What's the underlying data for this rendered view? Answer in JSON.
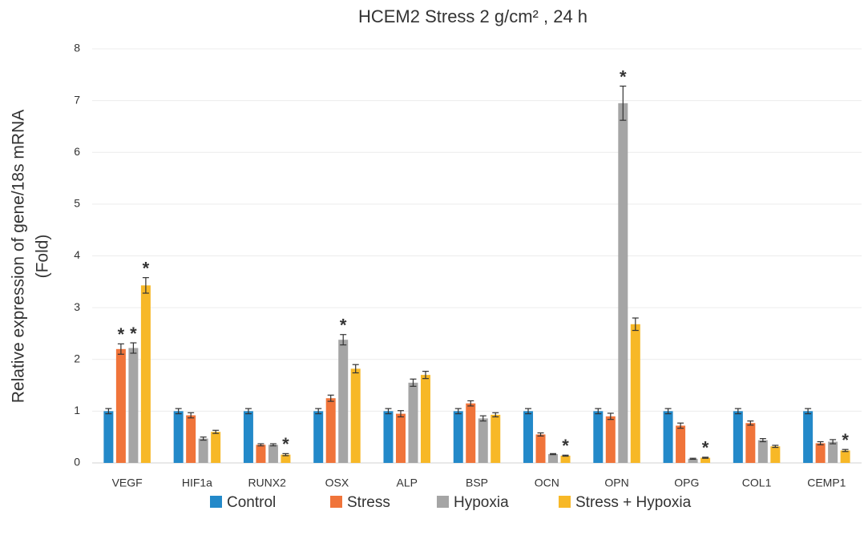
{
  "chart_data": {
    "type": "bar",
    "title": "HCEM2   Stress 2 g/cm² , 24 h",
    "ylabel": [
      "Relative expression of gene/18s mRNA",
      "(Fold)"
    ],
    "categories": [
      "VEGF",
      "HIF1a",
      "RUNX2",
      "OSX",
      "ALP",
      "BSP",
      "OCN",
      "OPN",
      "OPG",
      "COL1",
      "CEMP1"
    ],
    "series": [
      {
        "name": "Control",
        "color": "#2389c9",
        "values": [
          1,
          1,
          1,
          1,
          1,
          1,
          1,
          1,
          1,
          1,
          1
        ],
        "errors": [
          0.05,
          0.05,
          0.05,
          0.05,
          0.05,
          0.05,
          0.05,
          0.05,
          0.05,
          0.05,
          0.05
        ]
      },
      {
        "name": "Stress",
        "color": "#f0743a",
        "values": [
          2.2,
          0.92,
          0.35,
          1.25,
          0.95,
          1.15,
          0.55,
          0.9,
          0.72,
          0.77,
          0.38
        ],
        "errors": [
          0.1,
          0.05,
          0.02,
          0.06,
          0.06,
          0.05,
          0.03,
          0.06,
          0.05,
          0.04,
          0.03
        ]
      },
      {
        "name": "Hypoxia",
        "color": "#a5a5a5",
        "values": [
          2.22,
          0.47,
          0.35,
          2.38,
          1.55,
          0.86,
          0.17,
          6.95,
          0.08,
          0.44,
          0.41
        ],
        "errors": [
          0.1,
          0.03,
          0.02,
          0.1,
          0.07,
          0.05,
          0.01,
          0.33,
          0.01,
          0.03,
          0.04
        ]
      },
      {
        "name": "Stress + Hypoxia",
        "color": "#f7b827",
        "values": [
          3.43,
          0.6,
          0.16,
          1.82,
          1.7,
          0.93,
          0.14,
          2.68,
          0.1,
          0.32,
          0.24
        ],
        "errors": [
          0.15,
          0.03,
          0.02,
          0.08,
          0.07,
          0.04,
          0.01,
          0.12,
          0.01,
          0.02,
          0.02
        ]
      }
    ],
    "annotations": [
      {
        "text": "*",
        "category": "VEGF",
        "series": "Stress"
      },
      {
        "text": "*",
        "category": "VEGF",
        "series": "Hypoxia"
      },
      {
        "text": "*",
        "category": "VEGF",
        "series": "Stress + Hypoxia"
      },
      {
        "text": "*",
        "category": "RUNX2",
        "series": "Stress + Hypoxia"
      },
      {
        "text": "*",
        "category": "OSX",
        "series": "Hypoxia"
      },
      {
        "text": "*",
        "category": "OCN",
        "series": "Stress + Hypoxia"
      },
      {
        "text": "*",
        "category": "OPN",
        "series": "Hypoxia"
      },
      {
        "text": "*",
        "category": "OPG",
        "series": "Stress + Hypoxia"
      },
      {
        "text": "*",
        "category": "CEMP1",
        "series": "Stress + Hypoxia"
      }
    ],
    "ylim": [
      0,
      8
    ],
    "yticks": [
      0,
      1,
      2,
      3,
      4,
      5,
      6,
      7,
      8
    ],
    "grid": true,
    "legend": "bottom"
  }
}
